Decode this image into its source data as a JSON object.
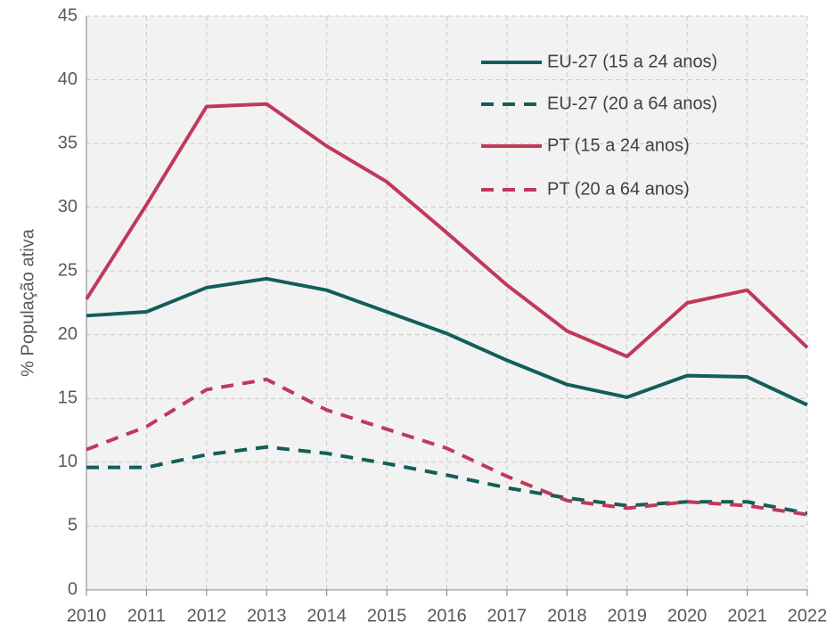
{
  "chart_data": {
    "type": "line",
    "y_label": "% População ativa",
    "x": [
      2010,
      2011,
      2012,
      2013,
      2014,
      2015,
      2016,
      2017,
      2018,
      2019,
      2020,
      2021,
      2022
    ],
    "xlim": [
      2010,
      2022
    ],
    "xticks": [
      2010,
      2011,
      2012,
      2013,
      2014,
      2015,
      2016,
      2017,
      2018,
      2019,
      2020,
      2021,
      2022
    ],
    "ylim": [
      0,
      45
    ],
    "yticks": [
      0,
      5,
      10,
      15,
      20,
      25,
      30,
      35,
      40,
      45
    ],
    "grid": true,
    "legend": "upper right",
    "series": [
      {
        "name": "EU-27 (15 a 24 anos)",
        "color": "#135e5a",
        "dash": "solid",
        "values": [
          21.5,
          21.8,
          23.7,
          24.4,
          23.5,
          21.8,
          20.1,
          18.0,
          16.1,
          15.1,
          16.8,
          16.7,
          14.5
        ]
      },
      {
        "name": "EU-27 (20 a 64 anos)",
        "color": "#135e5a",
        "dash": "dashed",
        "values": [
          9.6,
          9.6,
          10.6,
          11.2,
          10.7,
          9.9,
          9.0,
          8.0,
          7.2,
          6.6,
          6.9,
          6.9,
          6.0
        ]
      },
      {
        "name": "PT (15 a 24 anos)",
        "color": "#c0395a",
        "dash": "solid",
        "values": [
          22.8,
          30.2,
          37.9,
          38.1,
          34.8,
          32.0,
          28.0,
          23.9,
          20.3,
          18.3,
          22.5,
          23.5,
          19.0
        ]
      },
      {
        "name": "PT (20 a 64 anos)",
        "color": "#c0395a",
        "dash": "dashed",
        "values": [
          11.0,
          12.8,
          15.7,
          16.5,
          14.1,
          12.6,
          11.1,
          8.9,
          7.0,
          6.4,
          6.9,
          6.6,
          5.9
        ]
      }
    ]
  }
}
